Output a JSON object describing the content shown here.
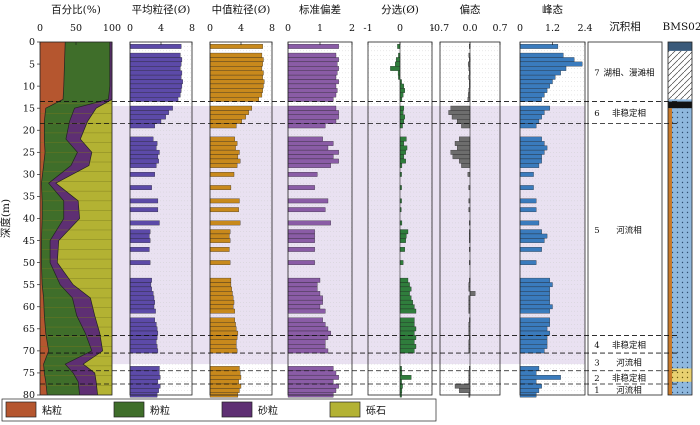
{
  "chart_data": {
    "type": "bar",
    "ylabel": "深度(m)",
    "ylim": [
      0,
      80
    ],
    "yticks": [
      0,
      5,
      10,
      15,
      20,
      25,
      30,
      35,
      40,
      45,
      50,
      55,
      60,
      65,
      70,
      75,
      80
    ],
    "highlight_interval": [
      14.5,
      73
    ],
    "grid": "dotted horizontal lines in curve panels",
    "panels": [
      {
        "title": "百分比(%)",
        "ticks": [
          "0",
          "50",
          "100"
        ],
        "xlim": [
          0,
          100
        ],
        "type": "stacked-area"
      },
      {
        "title": "平均粒径(Ø)",
        "ticks": [
          "0",
          "4",
          "8"
        ],
        "xlim": [
          0,
          8
        ],
        "color": "#5c4aa8",
        "ykey": "mean"
      },
      {
        "title": "中值粒径(Ø)",
        "ticks": [
          "0",
          "4",
          "8"
        ],
        "xlim": [
          0,
          8
        ],
        "color": "#c8891c",
        "ykey": "median"
      },
      {
        "title": "标准偏差",
        "ticks": [
          "0",
          "1",
          "2"
        ],
        "xlim": [
          0,
          2.4
        ],
        "color": "#8a5ca6",
        "ykey": "sd"
      },
      {
        "title": "分选(Ø)",
        "ticks": [
          "-1",
          "0",
          "1"
        ],
        "xlim": [
          -1,
          1
        ],
        "color": "#2f7d3c",
        "ykey": "sk",
        "from_zero": true
      },
      {
        "title": "偏态",
        "ticks": [
          "-0.7",
          "0.0",
          "0.7"
        ],
        "xlim": [
          -0.7,
          0.7
        ],
        "color": "#6d6d6d",
        "ykey": "sk2",
        "from_zero": true
      },
      {
        "title": "峰态",
        "ticks": [
          "0",
          "1.2",
          "2.4"
        ],
        "xlim": [
          0,
          2.4
        ],
        "color": "#3a7bbd",
        "ykey": "kg"
      }
    ],
    "samples": [
      {
        "d": 1,
        "mean": 6.6,
        "median": 6.8,
        "sd": 1.9,
        "sk": -0.08,
        "sk2": -0.02,
        "kg": 1.4
      },
      {
        "d": 3,
        "mean": 6.5,
        "median": 6.7,
        "sd": 1.8,
        "sk": -0.05,
        "sk2": -0.03,
        "kg": 1.6
      },
      {
        "d": 4,
        "mean": 6.7,
        "median": 6.9,
        "sd": 1.9,
        "sk": -0.12,
        "sk2": -0.02,
        "kg": 2.0
      },
      {
        "d": 5,
        "mean": 6.6,
        "median": 6.8,
        "sd": 1.85,
        "sk": -0.15,
        "sk2": -0.04,
        "kg": 2.3
      },
      {
        "d": 6,
        "mean": 6.5,
        "median": 6.7,
        "sd": 1.9,
        "sk": -0.3,
        "sk2": -0.03,
        "kg": 1.7
      },
      {
        "d": 7,
        "mean": 6.7,
        "median": 6.9,
        "sd": 1.85,
        "sk": -0.06,
        "sk2": -0.02,
        "kg": 1.5
      },
      {
        "d": 8,
        "mean": 6.6,
        "median": 6.8,
        "sd": 1.8,
        "sk": -0.05,
        "sk2": -0.03,
        "kg": 1.3
      },
      {
        "d": 9,
        "mean": 6.8,
        "median": 7.0,
        "sd": 1.9,
        "sk": 0.05,
        "sk2": -0.02,
        "kg": 1.2
      },
      {
        "d": 10,
        "mean": 6.7,
        "median": 6.9,
        "sd": 1.8,
        "sk": 0.12,
        "sk2": -0.02,
        "kg": 1.1
      },
      {
        "d": 11,
        "mean": 6.6,
        "median": 6.8,
        "sd": 1.85,
        "sk": 0.15,
        "sk2": -0.03,
        "kg": 1.0
      },
      {
        "d": 12,
        "mean": 6.5,
        "median": 6.7,
        "sd": 1.8,
        "sk": 0.1,
        "sk2": -0.04,
        "kg": 0.9
      },
      {
        "d": 13,
        "mean": 6.2,
        "median": 6.3,
        "sd": 1.7,
        "sk": 0.06,
        "sk2": -0.05,
        "kg": 0.8
      },
      {
        "d": 15,
        "mean": 5.5,
        "median": 5.4,
        "sd": 1.8,
        "sk": 0.12,
        "sk2": -0.45,
        "kg": 1.1
      },
      {
        "d": 16,
        "mean": 5.0,
        "median": 5.0,
        "sd": 1.9,
        "sk": 0.1,
        "sk2": -0.5,
        "kg": 0.9
      },
      {
        "d": 17,
        "mean": 4.6,
        "median": 4.6,
        "sd": 1.9,
        "sk": 0.15,
        "sk2": -0.42,
        "kg": 0.8
      },
      {
        "d": 18,
        "mean": 4.0,
        "median": 4.1,
        "sd": 1.8,
        "sk": 0.12,
        "sk2": -0.3,
        "kg": 0.7
      },
      {
        "d": 19,
        "mean": 3.2,
        "median": 3.4,
        "sd": 1.4,
        "sk": 0.08,
        "sk2": -0.2,
        "kg": 0.6
      },
      {
        "d": 22,
        "mean": 3.0,
        "median": 3.2,
        "sd": 1.3,
        "sk": 0.2,
        "sk2": -0.25,
        "kg": 0.8
      },
      {
        "d": 23,
        "mean": 3.5,
        "median": 3.5,
        "sd": 1.7,
        "sk": 0.12,
        "sk2": -0.35,
        "kg": 0.9
      },
      {
        "d": 24,
        "mean": 3.4,
        "median": 3.3,
        "sd": 1.5,
        "sk": 0.22,
        "sk2": -0.3,
        "kg": 1.0
      },
      {
        "d": 25,
        "mean": 3.8,
        "median": 3.8,
        "sd": 1.9,
        "sk": 0.18,
        "sk2": -0.45,
        "kg": 0.9
      },
      {
        "d": 26,
        "mean": 3.6,
        "median": 3.6,
        "sd": 1.7,
        "sk": 0.12,
        "sk2": -0.4,
        "kg": 0.8
      },
      {
        "d": 27,
        "mean": 3.7,
        "median": 3.9,
        "sd": 1.9,
        "sk": 0.18,
        "sk2": -0.25,
        "kg": 0.8
      },
      {
        "d": 28,
        "mean": 3.4,
        "median": 3.5,
        "sd": 1.6,
        "sk": 0.06,
        "sk2": -0.2,
        "kg": 0.7
      },
      {
        "d": 30,
        "mean": 3.2,
        "median": 3.1,
        "sd": 1.1,
        "sk": 0.05,
        "sk2": -0.05,
        "kg": 0.5
      },
      {
        "d": 33,
        "mean": 2.8,
        "median": 2.7,
        "sd": 1.0,
        "sk": 0.05,
        "sk2": -0.03,
        "kg": 0.5
      },
      {
        "d": 36,
        "mean": 3.6,
        "median": 3.8,
        "sd": 1.5,
        "sk": 0.05,
        "sk2": -0.03,
        "kg": 0.6
      },
      {
        "d": 38,
        "mean": 3.6,
        "median": 3.7,
        "sd": 1.4,
        "sk": 0.04,
        "sk2": -0.03,
        "kg": 0.6
      },
      {
        "d": 41,
        "mean": 3.8,
        "median": 3.9,
        "sd": 1.6,
        "sk": 0.06,
        "sk2": -0.02,
        "kg": 0.7
      },
      {
        "d": 43,
        "mean": 2.6,
        "median": 2.6,
        "sd": 1.0,
        "sk": 0.25,
        "sk2": -0.02,
        "kg": 0.8
      },
      {
        "d": 44,
        "mean": 2.5,
        "median": 2.5,
        "sd": 1.0,
        "sk": 0.2,
        "sk2": -0.02,
        "kg": 1.0
      },
      {
        "d": 45,
        "mean": 2.6,
        "median": 2.6,
        "sd": 1.0,
        "sk": 0.18,
        "sk2": -0.02,
        "kg": 0.9
      },
      {
        "d": 47,
        "mean": 2.5,
        "median": 2.5,
        "sd": 1.0,
        "sk": 0.15,
        "sk2": -0.02,
        "kg": 0.8
      },
      {
        "d": 50,
        "mean": 2.6,
        "median": 2.6,
        "sd": 1.0,
        "sk": 0.1,
        "sk2": -0.02,
        "kg": 0.6
      },
      {
        "d": 54,
        "mean": 2.8,
        "median": 2.7,
        "sd": 1.2,
        "sk": 0.25,
        "sk2": -0.02,
        "kg": 1.1
      },
      {
        "d": 55,
        "mean": 2.7,
        "median": 2.7,
        "sd": 1.1,
        "sk": 0.3,
        "sk2": -0.03,
        "kg": 1.2
      },
      {
        "d": 56,
        "mean": 2.8,
        "median": 2.8,
        "sd": 1.1,
        "sk": 0.35,
        "sk2": -0.03,
        "kg": 1.1
      },
      {
        "d": 57,
        "mean": 3.0,
        "median": 2.9,
        "sd": 1.2,
        "sk": 0.3,
        "sk2": 0.12,
        "kg": 1.1
      },
      {
        "d": 58,
        "mean": 3.1,
        "median": 3.0,
        "sd": 1.3,
        "sk": 0.35,
        "sk2": -0.03,
        "kg": 1.1
      },
      {
        "d": 59,
        "mean": 3.2,
        "median": 3.1,
        "sd": 1.3,
        "sk": 0.4,
        "sk2": -0.03,
        "kg": 1.1
      },
      {
        "d": 60,
        "mean": 3.1,
        "median": 3.0,
        "sd": 1.2,
        "sk": 0.45,
        "sk2": -0.03,
        "kg": 1.2
      },
      {
        "d": 61,
        "mean": 3.3,
        "median": 3.2,
        "sd": 1.4,
        "sk": 0.5,
        "sk2": -0.03,
        "kg": 1.1
      },
      {
        "d": 63,
        "mean": 3.2,
        "median": 3.2,
        "sd": 1.3,
        "sk": 0.45,
        "sk2": -0.02,
        "kg": 1.1
      },
      {
        "d": 64,
        "mean": 3.4,
        "median": 3.3,
        "sd": 1.4,
        "sk": 0.45,
        "sk2": -0.03,
        "kg": 1.1
      },
      {
        "d": 65,
        "mean": 3.5,
        "median": 3.4,
        "sd": 1.5,
        "sk": 0.5,
        "sk2": -0.03,
        "kg": 1.0
      },
      {
        "d": 66,
        "mean": 3.6,
        "median": 3.6,
        "sd": 1.6,
        "sk": 0.45,
        "sk2": -0.03,
        "kg": 1.1
      },
      {
        "d": 67,
        "mean": 3.5,
        "median": 3.5,
        "sd": 1.5,
        "sk": 0.5,
        "sk2": -0.02,
        "kg": 1.0
      },
      {
        "d": 68,
        "mean": 3.4,
        "median": 3.4,
        "sd": 1.4,
        "sk": 0.45,
        "sk2": -0.03,
        "kg": 1.0
      },
      {
        "d": 69,
        "mean": 3.5,
        "median": 3.4,
        "sd": 1.4,
        "sk": 0.5,
        "sk2": -0.03,
        "kg": 1.0
      },
      {
        "d": 70,
        "mean": 3.6,
        "median": 3.5,
        "sd": 1.5,
        "sk": 0.45,
        "sk2": -0.03,
        "kg": 0.9
      },
      {
        "d": 74,
        "mean": 3.8,
        "median": 3.8,
        "sd": 1.7,
        "sk": 0.05,
        "sk2": -0.02,
        "kg": 0.7
      },
      {
        "d": 75,
        "mean": 3.8,
        "median": 3.9,
        "sd": 1.8,
        "sk": 0.06,
        "sk2": -0.03,
        "kg": 0.6
      },
      {
        "d": 76,
        "mean": 3.9,
        "median": 4.0,
        "sd": 1.9,
        "sk": 0.35,
        "sk2": -0.03,
        "kg": 1.5
      },
      {
        "d": 77,
        "mean": 3.6,
        "median": 3.7,
        "sd": 1.7,
        "sk": 0.05,
        "sk2": -0.03,
        "kg": 0.6
      },
      {
        "d": 78,
        "mean": 3.9,
        "median": 4.0,
        "sd": 1.9,
        "sk": 0.08,
        "sk2": -0.35,
        "kg": 0.8
      },
      {
        "d": 79,
        "mean": 3.7,
        "median": 3.8,
        "sd": 1.8,
        "sk": 0.06,
        "sk2": -0.25,
        "kg": 0.7
      },
      {
        "d": 80,
        "mean": 3.5,
        "median": 3.6,
        "sd": 1.7,
        "sk": 0.05,
        "sk2": -0.03,
        "kg": 0.6
      }
    ],
    "percent_series": {
      "depths": [
        0,
        5,
        10,
        13,
        15,
        18,
        22,
        25,
        28,
        32,
        36,
        40,
        45,
        50,
        55,
        58,
        62,
        66,
        70,
        73,
        75,
        77,
        80
      ],
      "clay": [
        35,
        34,
        33,
        32,
        8,
        6,
        6,
        7,
        5,
        2,
        3,
        3,
        2,
        2,
        3,
        5,
        6,
        8,
        12,
        5,
        6,
        8,
        10
      ],
      "silt": [
        62,
        63,
        64,
        63,
        40,
        35,
        30,
        45,
        38,
        10,
        30,
        30,
        12,
        12,
        25,
        40,
        45,
        55,
        60,
        30,
        40,
        45,
        45
      ],
      "sand": [
        3,
        3,
        3,
        5,
        30,
        25,
        20,
        20,
        25,
        10,
        20,
        22,
        12,
        10,
        18,
        25,
        25,
        20,
        15,
        25,
        30,
        25,
        25
      ]
    },
    "facies": [
      {
        "from": 0,
        "to": 13.5,
        "number": "7",
        "label": "湖相、漫滩相"
      },
      {
        "from": 13.5,
        "to": 18.5,
        "number": "6",
        "label": "非稳定相"
      },
      {
        "from": 18.5,
        "to": 66.5,
        "number": "5",
        "label": "河流相"
      },
      {
        "from": 66.5,
        "to": 70.5,
        "number": "4",
        "label": "非稳定相"
      },
      {
        "from": 70.5,
        "to": 74.5,
        "number": "3",
        "label": "河流相"
      },
      {
        "from": 74.5,
        "to": 77.5,
        "number": "2",
        "label": "非稳定相"
      },
      {
        "from": 77.5,
        "to": 80,
        "number": "1",
        "label": "河流相"
      }
    ],
    "facies_header": "沉积相",
    "core_header": "BMS02",
    "legend": [
      {
        "label": "粘粒",
        "color": "#b5562f"
      },
      {
        "label": "粉粒",
        "color": "#3f6e2a"
      },
      {
        "label": "砂粒",
        "color": "#5e2f73"
      },
      {
        "label": "砾石",
        "color": "#b3b233"
      }
    ],
    "colors": {
      "clay": "#b5562f",
      "silt": "#3f6e2a",
      "sand": "#5e2f73",
      "gravel": "#b3b233",
      "band": "#e9e1f1"
    }
  }
}
